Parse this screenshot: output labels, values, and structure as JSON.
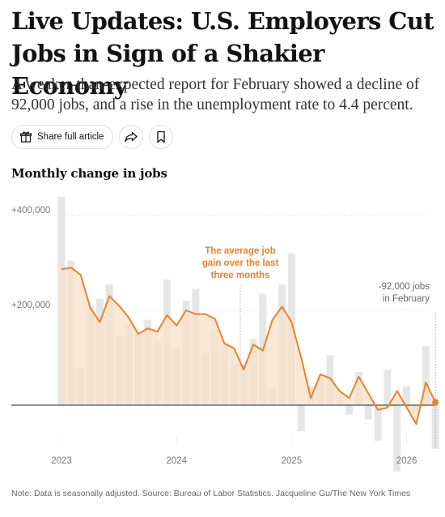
{
  "article": {
    "headline": "Live Updates: U.S. Employers Cut Jobs in  Sign of a Shakier Economy",
    "dek": "A weaker-than-expected report for February showed a decline of 92,000 jobs, and a rise in the unemployment rate to 4.4 percent."
  },
  "share_bar": {
    "share_label": "Share full article",
    "icons": [
      "gift-icon",
      "share-arrow-icon",
      "bookmark-icon"
    ]
  },
  "chart_data": {
    "type": "bar+line",
    "title": "Monthly change in jobs",
    "ylabel": "",
    "xlabel": "",
    "ylim": [
      -140000,
      450000
    ],
    "yticks": [
      {
        "value": 400000,
        "label": "+400,000"
      },
      {
        "value": 200000,
        "label": "+200,000"
      },
      {
        "value": 0,
        "label": ""
      }
    ],
    "xticks": [
      "2023",
      "2024",
      "2025",
      "2026"
    ],
    "start_month": "2023-01",
    "series": [
      {
        "name": "Monthly change",
        "kind": "bar",
        "values": [
          440000,
          305000,
          80000,
          210000,
          225000,
          255000,
          145000,
          175000,
          150000,
          180000,
          135000,
          265000,
          120000,
          220000,
          245000,
          110000,
          160000,
          125000,
          85000,
          85000,
          140000,
          235000,
          40000,
          255000,
          320000,
          -55000,
          40000,
          55000,
          105000,
          25000,
          -20000,
          70000,
          -30000,
          -75000,
          75000,
          -140000,
          40000,
          -15000,
          125000,
          -92000
        ]
      },
      {
        "name": "Three-month average",
        "kind": "line",
        "values": [
          287000,
          290000,
          275000,
          205000,
          175000,
          230000,
          210000,
          185000,
          150000,
          162000,
          155000,
          190000,
          168000,
          200000,
          192000,
          192000,
          182000,
          130000,
          120000,
          75000,
          128000,
          115000,
          180000,
          208000,
          175000,
          100000,
          15000,
          65000,
          57000,
          30000,
          15000,
          60000,
          25000,
          -10000,
          -5000,
          30000,
          -5000,
          -40000,
          48000,
          6000
        ]
      }
    ],
    "annotations": [
      {
        "text": "The average job gain over the last three months",
        "lines": [
          "The average job",
          "gain over the last",
          "three months"
        ]
      },
      {
        "text": "-92,000 jobs in February",
        "lines": [
          "-92,000 jobs",
          "in February"
        ]
      }
    ],
    "colors": {
      "bar": "#e6e6e6",
      "line": "#e8822f",
      "fill": "#f8e0c8",
      "zero_line": "#222222",
      "grid": "#cccccc"
    },
    "grid": true,
    "legend": "none"
  },
  "footer": {
    "note": "Note: Data is seasonally adjusted.  Source: Bureau of Labor Statistics.  Jacqueline Gu/The New York Times"
  }
}
